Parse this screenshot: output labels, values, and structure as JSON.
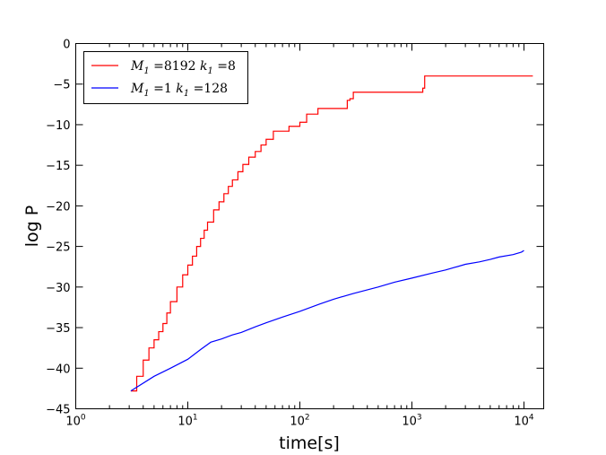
{
  "chart_data": {
    "type": "line",
    "title": "",
    "xlabel": "time[s]",
    "ylabel": "log P",
    "xscale": "log",
    "xlim": [
      1,
      15000
    ],
    "ylim": [
      -45,
      0
    ],
    "grid": false,
    "legend_position": "top-left",
    "x_ticks": [
      {
        "value": 1,
        "base": "10",
        "exp": "0"
      },
      {
        "value": 10,
        "base": "10",
        "exp": "1"
      },
      {
        "value": 100,
        "base": "10",
        "exp": "2"
      },
      {
        "value": 1000,
        "base": "10",
        "exp": "3"
      },
      {
        "value": 10000,
        "base": "10",
        "exp": "4"
      }
    ],
    "y_ticks": [
      {
        "value": 0,
        "label": "0"
      },
      {
        "value": -5,
        "label": "−5"
      },
      {
        "value": -10,
        "label": "−10"
      },
      {
        "value": -15,
        "label": "−15"
      },
      {
        "value": -20,
        "label": "−20"
      },
      {
        "value": -25,
        "label": "−25"
      },
      {
        "value": -30,
        "label": "−30"
      },
      {
        "value": -35,
        "label": "−35"
      },
      {
        "value": -40,
        "label": "−40"
      },
      {
        "value": -45,
        "label": "−45"
      }
    ],
    "series": [
      {
        "name": "M1 =8192 k1 =8",
        "legend": {
          "v1": "M",
          "s1": "1",
          "eq1": " =8192 ",
          "v2": "k",
          "s2": "1",
          "eq2": " =8"
        },
        "color": "#ff0000",
        "step": true,
        "points": [
          [
            3.1,
            -42.8
          ],
          [
            3.5,
            -41.0
          ],
          [
            4.0,
            -39.0
          ],
          [
            4.5,
            -37.5
          ],
          [
            5.0,
            -36.5
          ],
          [
            5.5,
            -35.5
          ],
          [
            6.0,
            -34.5
          ],
          [
            6.5,
            -33.2
          ],
          [
            7.0,
            -31.8
          ],
          [
            8.0,
            -30.0
          ],
          [
            9.0,
            -28.5
          ],
          [
            10.0,
            -27.3
          ],
          [
            11.0,
            -26.2
          ],
          [
            12.0,
            -25.0
          ],
          [
            13.0,
            -24.0
          ],
          [
            14.0,
            -23.0
          ],
          [
            15.0,
            -22.0
          ],
          [
            17.0,
            -20.5
          ],
          [
            19.0,
            -19.5
          ],
          [
            21.0,
            -18.5
          ],
          [
            23.0,
            -17.6
          ],
          [
            25.0,
            -16.8
          ],
          [
            28.0,
            -15.8
          ],
          [
            31.0,
            -14.9
          ],
          [
            35.0,
            -14.0
          ],
          [
            40.0,
            -13.3
          ],
          [
            45.0,
            -12.5
          ],
          [
            50.0,
            -11.8
          ],
          [
            58.0,
            -10.8
          ],
          [
            75.0,
            -10.8
          ],
          [
            80.0,
            -10.2
          ],
          [
            100.0,
            -9.7
          ],
          [
            115.0,
            -8.7
          ],
          [
            140.0,
            -8.7
          ],
          [
            145.0,
            -8.0
          ],
          [
            260.0,
            -8.0
          ],
          [
            265.0,
            -7.0
          ],
          [
            280.0,
            -6.8
          ],
          [
            300.0,
            -6.0
          ],
          [
            1200.0,
            -6.0
          ],
          [
            1250.0,
            -5.5
          ],
          [
            1300.0,
            -4.0
          ],
          [
            12000.0,
            -4.0
          ]
        ]
      },
      {
        "name": "M1 =1 k1 =128",
        "legend": {
          "v1": "M",
          "s1": "1",
          "eq1": " =1 ",
          "v2": "k",
          "s2": "1",
          "eq2": " =128"
        },
        "color": "#0000ff",
        "step": false,
        "points": [
          [
            3.1,
            -42.8
          ],
          [
            5.0,
            -41.0
          ],
          [
            7.0,
            -40.0
          ],
          [
            10.0,
            -38.9
          ],
          [
            13.0,
            -37.7
          ],
          [
            16.0,
            -36.8
          ],
          [
            20.0,
            -36.4
          ],
          [
            25.0,
            -35.9
          ],
          [
            30.0,
            -35.6
          ],
          [
            40.0,
            -34.9
          ],
          [
            50.0,
            -34.4
          ],
          [
            70.0,
            -33.7
          ],
          [
            100.0,
            -33.0
          ],
          [
            150.0,
            -32.1
          ],
          [
            200.0,
            -31.5
          ],
          [
            300.0,
            -30.8
          ],
          [
            500.0,
            -30.0
          ],
          [
            700.0,
            -29.4
          ],
          [
            1000.0,
            -28.9
          ],
          [
            1500.0,
            -28.3
          ],
          [
            2000.0,
            -27.9
          ],
          [
            3000.0,
            -27.2
          ],
          [
            4000.0,
            -26.9
          ],
          [
            5000.0,
            -26.6
          ],
          [
            6000.0,
            -26.3
          ],
          [
            8000.0,
            -26.0
          ],
          [
            9500.0,
            -25.7
          ],
          [
            10000.0,
            -25.5
          ]
        ]
      }
    ]
  }
}
